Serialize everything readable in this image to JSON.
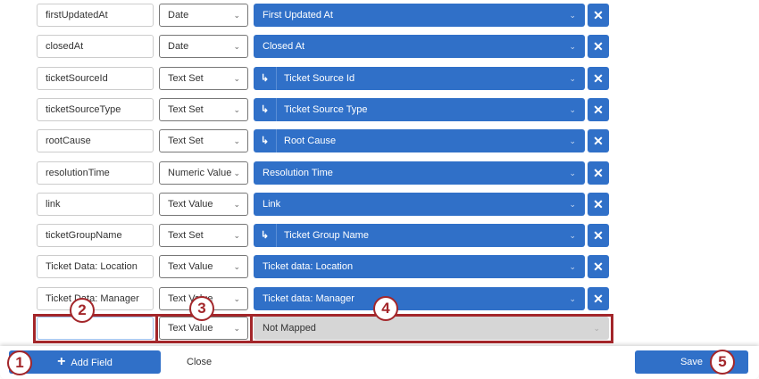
{
  "rows": [
    {
      "field": "firstUpdatedAt",
      "type": "Date",
      "mapping": "First Updated At",
      "sub": false
    },
    {
      "field": "closedAt",
      "type": "Date",
      "mapping": "Closed At",
      "sub": false
    },
    {
      "field": "ticketSourceId",
      "type": "Text Set",
      "mapping": "Ticket Source Id",
      "sub": true
    },
    {
      "field": "ticketSourceType",
      "type": "Text Set",
      "mapping": "Ticket Source Type",
      "sub": true
    },
    {
      "field": "rootCause",
      "type": "Text Set",
      "mapping": "Root Cause",
      "sub": true
    },
    {
      "field": "resolutionTime",
      "type": "Numeric Value",
      "mapping": "Resolution Time",
      "sub": false
    },
    {
      "field": "link",
      "type": "Text Value",
      "mapping": "Link",
      "sub": false
    },
    {
      "field": "ticketGroupName",
      "type": "Text Set",
      "mapping": "Ticket Group Name",
      "sub": true
    },
    {
      "field": "Ticket Data: Location",
      "type": "Text Value",
      "mapping": "Ticket data: Location",
      "sub": false
    },
    {
      "field": "Ticket Data: Manager",
      "type": "Text Value",
      "mapping": "Ticket data: Manager",
      "sub": false
    }
  ],
  "new_row": {
    "field": "",
    "type": "Text Value",
    "mapping": "Not Mapped"
  },
  "footer": {
    "add_field": "Add Field",
    "close": "Close",
    "save": "Save"
  },
  "callouts": [
    "1",
    "2",
    "3",
    "4",
    "5"
  ],
  "colors": {
    "primary": "#3070c8",
    "callout": "#a3262a"
  }
}
